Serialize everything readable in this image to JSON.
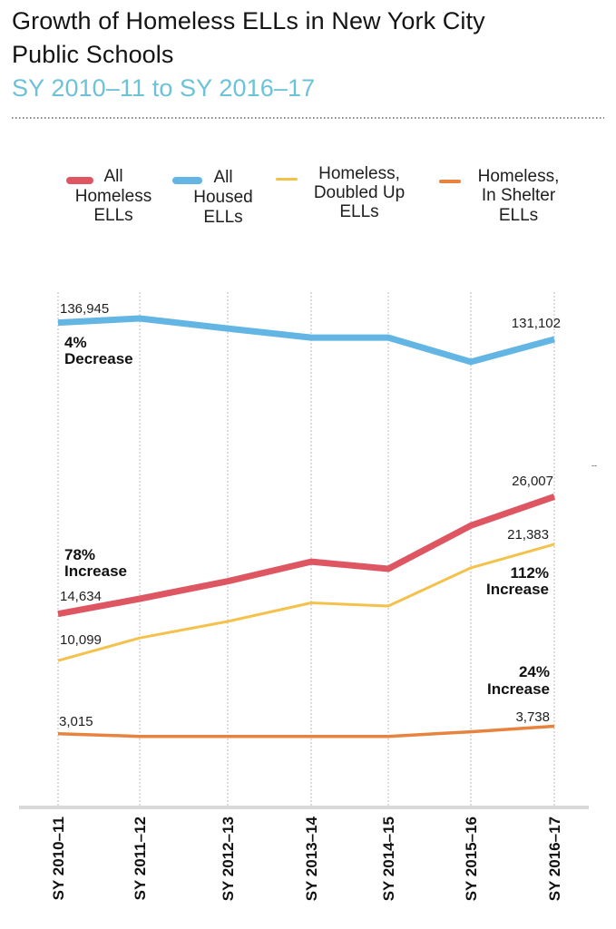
{
  "header": {
    "title_line1": "Growth of Homeless ELLs in New York City",
    "title_line2": "Public Schools",
    "subtitle": "SY 2010–11 to SY 2016–17"
  },
  "colors": {
    "subtitle": "#6cc3d7",
    "gridline": "#bdbdbd",
    "axis_baseline": "#d9d9d9",
    "separator": "#8a8a8a"
  },
  "chart_data": {
    "type": "line",
    "title": "Growth of Homeless ELLs in New York City Public Schools",
    "subtitle": "SY 2010–11 to SY 2016–17",
    "xlabel": "",
    "ylabel": "",
    "categories": [
      "SY 2010–11",
      "SY 2011–12",
      "SY 2012–13",
      "SY 2013–14",
      "SY 2014–15",
      "SY 2015–16",
      "SY 2016–17"
    ],
    "y_axis": {
      "visible": false,
      "broken": true,
      "upper_ylim": [
        120000,
        140000
      ],
      "lower_ylim": [
        0,
        30000
      ]
    },
    "grid": {
      "vertical": true,
      "horizontal": false,
      "style": "dotted"
    },
    "legend": {
      "position": "top",
      "entries": [
        {
          "series": "All Homeless ELLs",
          "lines": [
            "All",
            "Homeless",
            "ELLs"
          ]
        },
        {
          "series": "All Housed ELLs",
          "lines": [
            "All",
            "Housed",
            "ELLs"
          ]
        },
        {
          "series": "Homeless, Doubled Up ELLs",
          "lines": [
            "Homeless,",
            "Doubled Up",
            "ELLs"
          ]
        },
        {
          "series": "Homeless, In Shelter ELLs",
          "lines": [
            "Homeless,",
            "In Shelter",
            "ELLs"
          ]
        }
      ]
    },
    "series": [
      {
        "key": "all_housed",
        "name": "All Housed ELLs",
        "color": "#63b5e4",
        "axis": "upper",
        "values": [
          136945,
          138400,
          134900,
          131700,
          131700,
          123200,
          131102
        ]
      },
      {
        "key": "in_shelter",
        "name": "Homeless, In Shelter ELLs",
        "color": "#e8823f",
        "axis": "lower",
        "values": [
          3015,
          2750,
          2750,
          2750,
          2750,
          3200,
          3738
        ]
      },
      {
        "key": "doubled_up",
        "name": "Homeless, Doubled Up ELLs",
        "color": "#f4c24b",
        "axis": "lower",
        "values": [
          10099,
          12300,
          13900,
          15700,
          15400,
          19100,
          21383
        ]
      },
      {
        "key": "all_homeless",
        "name": "All Homeless ELLs",
        "color": "#dd5661",
        "axis": "lower",
        "values": [
          14634,
          16100,
          17800,
          19700,
          19000,
          23200,
          26007
        ]
      }
    ],
    "annotations": {
      "all_housed": {
        "start_label": "136,945",
        "end_label": "131,102",
        "change_pct": "4%",
        "change_word": "Decrease"
      },
      "all_homeless": {
        "start_label": "14,634",
        "end_label": "26,007",
        "change_pct": "78%",
        "change_word": "Increase"
      },
      "doubled_up": {
        "start_label": "10,099",
        "end_label": "21,383",
        "change_pct": "112%",
        "change_word": "Increase"
      },
      "in_shelter": {
        "start_label": "3,015",
        "end_label": "3,738",
        "change_pct": "24%",
        "change_word": "Increase"
      },
      "stray_mark": "--"
    }
  }
}
